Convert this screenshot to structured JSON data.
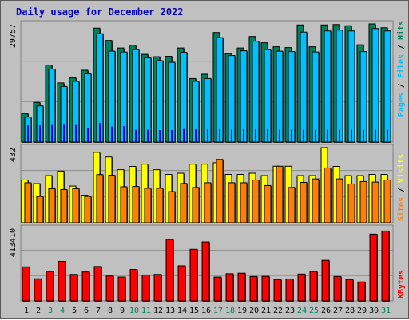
{
  "title": "Daily usage for December 2022",
  "colors": {
    "background": "#c0c0c0",
    "title": "#0000bb",
    "hits": "#00805c",
    "files": "#00c0ff",
    "pages": "#0000ff",
    "visits": "#ffff00",
    "sites": "#ff8000",
    "kbytes": "#ff0000",
    "weekend_day": "#00805c",
    "weekday_day": "#000000"
  },
  "panel_labels": {
    "top": [
      "Pages",
      "Files",
      "Hits"
    ],
    "middle": [
      "Sites",
      "Visits"
    ],
    "bottom": [
      "KBytes"
    ],
    "separator": " / "
  },
  "chart_data": [
    {
      "type": "bar",
      "name_panel": "hits-files-pages",
      "categories": [
        "1",
        "2",
        "3",
        "4",
        "5",
        "6",
        "7",
        "8",
        "9",
        "10",
        "11",
        "12",
        "13",
        "14",
        "15",
        "16",
        "17",
        "18",
        "19",
        "20",
        "21",
        "22",
        "23",
        "24",
        "25",
        "26",
        "27",
        "28",
        "29",
        "30",
        "31"
      ],
      "y_max_label": "29757",
      "ylim": [
        0,
        29757
      ],
      "series": [
        {
          "name": "Hits",
          "values": [
            7200,
            10000,
            19400,
            14900,
            16200,
            18100,
            28700,
            25600,
            23700,
            24400,
            22100,
            21500,
            21600,
            23700,
            16000,
            17100,
            27600,
            22300,
            23700,
            26600,
            25000,
            24000,
            23800,
            29500,
            24000,
            29500,
            29600,
            29300,
            24500,
            30000,
            28800
          ]
        },
        {
          "name": "Files",
          "values": [
            6300,
            9100,
            18400,
            14000,
            15300,
            17200,
            27300,
            22900,
            22700,
            23300,
            21200,
            20500,
            20100,
            22600,
            15300,
            16000,
            26300,
            21800,
            23000,
            25400,
            23300,
            22900,
            22800,
            27700,
            22700,
            28000,
            28200,
            28000,
            22800,
            28600,
            28000
          ]
        },
        {
          "name": "Pages",
          "values": [
            4200,
            4200,
            4300,
            4400,
            4300,
            3600,
            4800,
            3900,
            4000,
            3100,
            3100,
            3000,
            3000,
            3300,
            3200,
            3200,
            3200,
            3100,
            3200,
            3200,
            3200,
            3100,
            3100,
            3100,
            3100,
            3100,
            3100,
            3100,
            3100,
            3100,
            3100
          ]
        }
      ]
    },
    {
      "type": "bar",
      "name_panel": "visits-sites",
      "categories": [
        "1",
        "2",
        "3",
        "4",
        "5",
        "6",
        "7",
        "8",
        "9",
        "10",
        "11",
        "12",
        "13",
        "14",
        "15",
        "16",
        "17",
        "18",
        "19",
        "20",
        "21",
        "22",
        "23",
        "24",
        "25",
        "26",
        "27",
        "28",
        "29",
        "30",
        "31"
      ],
      "y_max_label": "432",
      "ylim": [
        0,
        432
      ],
      "series": [
        {
          "name": "Visits",
          "values": [
            246,
            225,
            271,
            297,
            211,
            158,
            405,
            378,
            305,
            324,
            337,
            305,
            278,
            285,
            337,
            337,
            345,
            278,
            278,
            285,
            271,
            325,
            325,
            271,
            271,
            432,
            324,
            271,
            271,
            278,
            278
          ]
        },
        {
          "name": "Sites",
          "values": [
            230,
            151,
            196,
            191,
            196,
            151,
            277,
            273,
            207,
            209,
            198,
            198,
            179,
            226,
            203,
            230,
            364,
            230,
            230,
            246,
            214,
            325,
            203,
            232,
            252,
            315,
            252,
            223,
            237,
            234,
            246
          ]
        }
      ]
    },
    {
      "type": "bar",
      "name_panel": "kbytes",
      "categories": [
        "1",
        "2",
        "3",
        "4",
        "5",
        "6",
        "7",
        "8",
        "9",
        "10",
        "11",
        "12",
        "13",
        "14",
        "15",
        "16",
        "17",
        "18",
        "19",
        "20",
        "21",
        "22",
        "23",
        "24",
        "25",
        "26",
        "27",
        "28",
        "29",
        "30",
        "31"
      ],
      "y_max_label": "413410",
      "ylim": [
        0,
        413410
      ],
      "series": [
        {
          "name": "KBytes",
          "values": [
            194000,
            126000,
            168000,
            225000,
            151000,
            165000,
            196000,
            142000,
            136000,
            179000,
            148000,
            151000,
            350000,
            200000,
            294000,
            336000,
            136000,
            155000,
            158000,
            139000,
            140000,
            122000,
            125000,
            153000,
            168000,
            231000,
            139000,
            122000,
            108000,
            380000,
            398000
          ]
        }
      ]
    }
  ],
  "weekend_days": [
    "3",
    "4",
    "10",
    "11",
    "17",
    "18",
    "24",
    "25",
    "31"
  ]
}
